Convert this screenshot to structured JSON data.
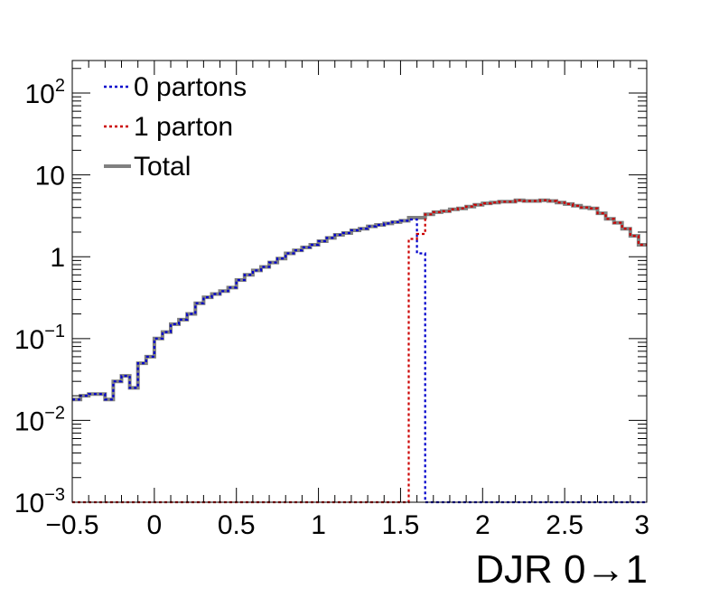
{
  "chart_data": {
    "type": "line",
    "xlabel": "DJR 0→1",
    "ylabel": "",
    "xlim": [
      -0.5,
      3.0
    ],
    "ylim": [
      0.001,
      250
    ],
    "y_scale": "log",
    "grid": false,
    "legend_placement": "top-left",
    "x_ticks": [
      {
        "value": -0.5,
        "label": "−0.5"
      },
      {
        "value": 0,
        "label": "0"
      },
      {
        "value": 0.5,
        "label": "0.5"
      },
      {
        "value": 1,
        "label": "1"
      },
      {
        "value": 1.5,
        "label": "1.5"
      },
      {
        "value": 2,
        "label": "2"
      },
      {
        "value": 2.5,
        "label": "2.5"
      },
      {
        "value": 3,
        "label": "3"
      }
    ],
    "y_ticks": [
      {
        "value": 0.001,
        "base": "10",
        "exp": "−3",
        "label": ""
      },
      {
        "value": 0.01,
        "base": "10",
        "exp": "−2",
        "label": ""
      },
      {
        "value": 0.1,
        "base": "10",
        "exp": "−1",
        "label": ""
      },
      {
        "value": 1,
        "base": "",
        "exp": "",
        "label": "1"
      },
      {
        "value": 10,
        "base": "",
        "exp": "",
        "label": "10"
      },
      {
        "value": 100,
        "base": "10",
        "exp": "2",
        "label": ""
      }
    ],
    "bin_edges": [
      -0.5,
      -0.45,
      -0.4,
      -0.35,
      -0.3,
      -0.25,
      -0.2,
      -0.15,
      -0.1,
      -0.05,
      0.0,
      0.05,
      0.1,
      0.15,
      0.2,
      0.25,
      0.3,
      0.35,
      0.4,
      0.45,
      0.5,
      0.55,
      0.6,
      0.65,
      0.7,
      0.75,
      0.8,
      0.85,
      0.9,
      0.95,
      1.0,
      1.05,
      1.1,
      1.15,
      1.2,
      1.25,
      1.3,
      1.35,
      1.4,
      1.45,
      1.5,
      1.55,
      1.6,
      1.65,
      1.7,
      1.75,
      1.8,
      1.85,
      1.9,
      1.95,
      2.0,
      2.05,
      2.1,
      2.15,
      2.2,
      2.25,
      2.3,
      2.35,
      2.4,
      2.45,
      2.5,
      2.55,
      2.6,
      2.65,
      2.7,
      2.75,
      2.8,
      2.85,
      2.9,
      2.95,
      3.0
    ],
    "series": [
      {
        "name": "0 partons",
        "color": "#0000cc",
        "style": "dotted",
        "values": [
          0.018,
          0.02,
          0.021,
          0.021,
          0.018,
          0.03,
          0.035,
          0.025,
          0.05,
          0.06,
          0.1,
          0.12,
          0.15,
          0.17,
          0.2,
          0.27,
          0.32,
          0.35,
          0.38,
          0.42,
          0.52,
          0.6,
          0.68,
          0.75,
          0.85,
          0.95,
          1.1,
          1.2,
          1.3,
          1.4,
          1.55,
          1.7,
          1.85,
          1.95,
          2.1,
          2.2,
          2.35,
          2.45,
          2.55,
          2.65,
          2.75,
          2.85,
          1.1,
          0.001,
          0.001,
          0.001,
          0.001,
          0.001,
          0.001,
          0.001,
          0.001,
          0.001,
          0.001,
          0.001,
          0.001,
          0.001,
          0.001,
          0.001,
          0.001,
          0.001,
          0.001,
          0.001,
          0.001,
          0.001,
          0.001,
          0.001,
          0.001,
          0.001,
          0.001,
          0.001
        ]
      },
      {
        "name": "1 parton",
        "color": "#cc0000",
        "style": "dotted",
        "values": [
          0.001,
          0.001,
          0.001,
          0.001,
          0.001,
          0.001,
          0.001,
          0.001,
          0.001,
          0.001,
          0.001,
          0.001,
          0.001,
          0.001,
          0.001,
          0.001,
          0.001,
          0.001,
          0.001,
          0.001,
          0.001,
          0.001,
          0.001,
          0.001,
          0.001,
          0.001,
          0.001,
          0.001,
          0.001,
          0.001,
          0.001,
          0.001,
          0.001,
          0.001,
          0.001,
          0.001,
          0.001,
          0.001,
          0.001,
          0.001,
          0.001,
          1.65,
          1.9,
          3.3,
          3.5,
          3.6,
          3.8,
          3.9,
          4.1,
          4.3,
          4.5,
          4.6,
          4.7,
          4.7,
          4.9,
          4.8,
          4.8,
          4.9,
          4.8,
          4.6,
          4.4,
          4.2,
          4.0,
          3.9,
          3.4,
          2.9,
          2.6,
          2.2,
          1.8,
          1.4
        ]
      },
      {
        "name": "Total",
        "color": "#808080",
        "style": "solid",
        "values": [
          0.018,
          0.02,
          0.021,
          0.021,
          0.018,
          0.03,
          0.035,
          0.025,
          0.05,
          0.06,
          0.1,
          0.12,
          0.15,
          0.17,
          0.2,
          0.27,
          0.32,
          0.35,
          0.38,
          0.42,
          0.52,
          0.6,
          0.68,
          0.75,
          0.85,
          0.95,
          1.1,
          1.2,
          1.3,
          1.4,
          1.55,
          1.7,
          1.85,
          1.95,
          2.1,
          2.2,
          2.35,
          2.45,
          2.55,
          2.65,
          2.75,
          3.0,
          3.0,
          3.3,
          3.5,
          3.6,
          3.8,
          3.9,
          4.1,
          4.3,
          4.5,
          4.6,
          4.7,
          4.7,
          4.9,
          4.8,
          4.8,
          4.9,
          4.8,
          4.6,
          4.4,
          4.2,
          4.0,
          3.9,
          3.4,
          2.9,
          2.6,
          2.2,
          1.8,
          1.4
        ]
      }
    ]
  }
}
